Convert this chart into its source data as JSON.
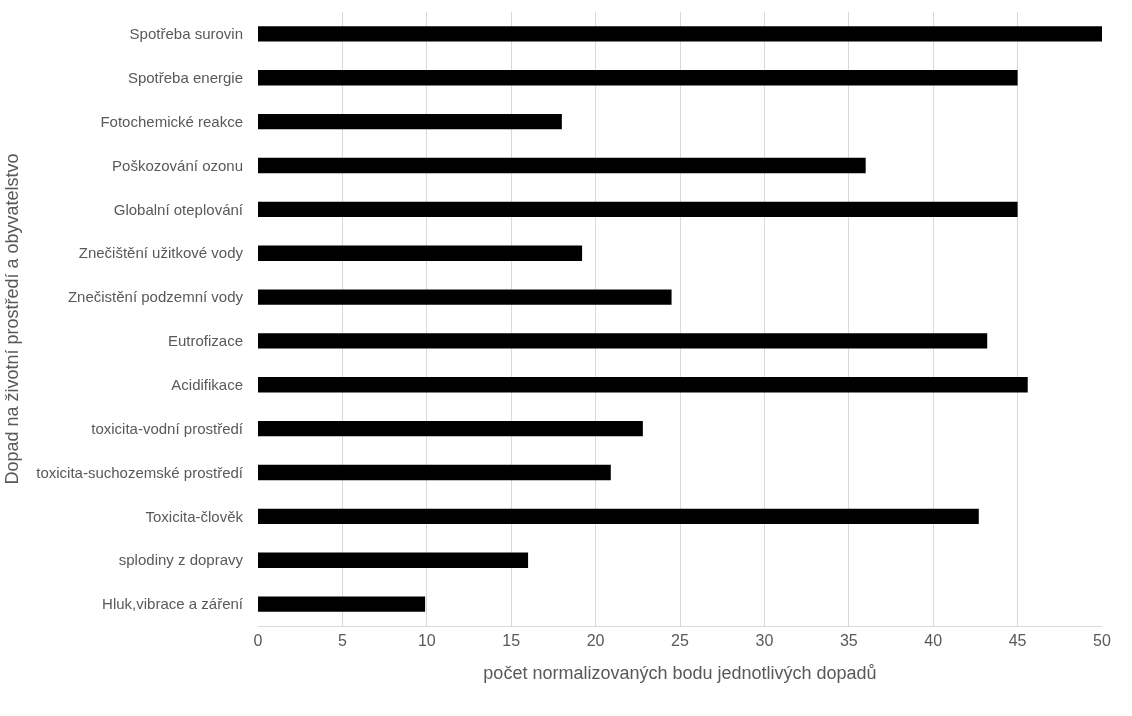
{
  "chart_data": {
    "type": "bar",
    "orientation": "horizontal",
    "xlabel": "počet normalizovaných bodu jednotlivých dopadů",
    "ylabel": "Dopad na životní prostředí a obyvatelstvo",
    "categories": [
      "Spotřeba surovin",
      "Spotřeba energie",
      "Fotochemické reakce",
      "Poškozování ozonu",
      "Globalní oteplování",
      "Znečištění užitkové vody",
      "Znečistění podzemní vody",
      "Eutrofizace",
      "Acidifikace",
      "toxicita-vodní prostředí",
      "toxicita-suchozemské prostředí",
      "Toxicita-člověk",
      "splodiny z dopravy",
      "Hluk,vibrace a záření"
    ],
    "values": [
      50,
      45,
      18,
      36,
      45,
      19.2,
      24.5,
      43.2,
      45.6,
      22.8,
      20.9,
      42.7,
      16.0,
      9.9
    ],
    "color": "#000000",
    "xlim": [
      0,
      50
    ],
    "xticks": [
      0,
      5,
      10,
      15,
      20,
      25,
      30,
      35,
      40,
      45,
      50
    ],
    "grid": "x"
  }
}
